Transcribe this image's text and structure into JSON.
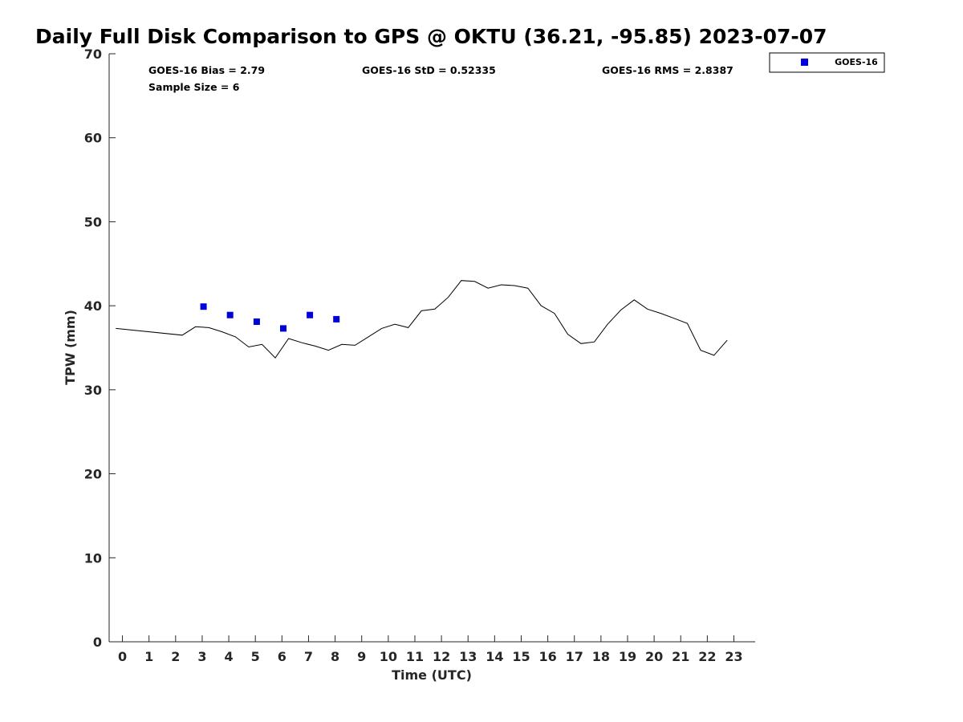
{
  "chart_data": {
    "type": "line",
    "title": "Daily Full Disk Comparison to GPS @ OKTU (36.21, -95.85) 2023-07-07",
    "xlabel": "Time (UTC)",
    "ylabel": "TPW (mm)",
    "xlim": [
      -0.5,
      23.8
    ],
    "ylim": [
      0,
      70
    ],
    "xticks": [
      0,
      1,
      2,
      3,
      4,
      5,
      6,
      7,
      8,
      9,
      10,
      11,
      12,
      13,
      14,
      15,
      16,
      17,
      18,
      19,
      20,
      21,
      22,
      23
    ],
    "yticks": [
      0,
      10,
      20,
      30,
      40,
      50,
      60,
      70
    ],
    "grid": false,
    "legend_position": "outside-top-right",
    "stats": {
      "bias": "GOES-16 Bias = 2.79",
      "std": "GOES-16 StD = 0.52335",
      "rms": "GOES-16 RMS = 2.8387",
      "sample": "Sample Size = 6"
    },
    "series": [
      {
        "kind": "line",
        "color": "#000000",
        "x": [
          -0.25,
          2.25,
          2.75,
          3.25,
          3.75,
          4.25,
          4.75,
          5.25,
          5.75,
          6.25,
          6.75,
          7.25,
          7.75,
          8.25,
          8.75,
          9.25,
          9.75,
          10.25,
          10.75,
          11.25,
          11.75,
          12.25,
          12.75,
          13.25,
          13.75,
          14.25,
          14.75,
          15.25,
          15.75,
          16.25,
          16.75,
          17.25,
          17.75,
          18.25,
          18.75,
          19.25,
          19.75,
          20.25,
          20.75,
          21.25,
          21.75,
          22.25,
          22.75
        ],
        "y": [
          37.3,
          36.5,
          37.5,
          37.4,
          36.9,
          36.3,
          35.1,
          35.4,
          33.8,
          36.1,
          35.6,
          35.2,
          34.7,
          35.4,
          35.3,
          36.3,
          37.3,
          37.8,
          37.4,
          39.4,
          39.6,
          41.0,
          43.0,
          42.9,
          42.1,
          42.5,
          42.4,
          42.1,
          40.0,
          39.1,
          36.6,
          35.5,
          35.7,
          37.8,
          39.5,
          40.7,
          39.6,
          39.1,
          38.5,
          37.9,
          34.7,
          34.1,
          35.9
        ]
      },
      {
        "name": "GOES-16",
        "kind": "scatter",
        "color": "#0000d8",
        "x": [
          3.05,
          4.05,
          5.05,
          6.05,
          7.05,
          8.05
        ],
        "y": [
          39.9,
          38.9,
          38.1,
          37.3,
          38.9,
          38.4
        ]
      }
    ]
  }
}
